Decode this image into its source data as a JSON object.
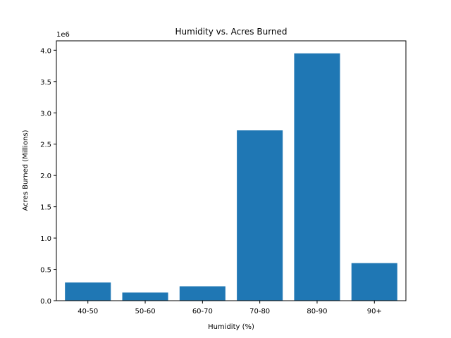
{
  "chart_data": {
    "type": "bar",
    "title": "Humidity vs. Acres Burned",
    "xlabel": "Humidity (%)",
    "ylabel": "Acres Burned (Millions)",
    "y_offset_label": "1e6",
    "categories": [
      "40-50",
      "50-60",
      "60-70",
      "70-80",
      "80-90",
      "90+"
    ],
    "values": [
      290000,
      130000,
      230000,
      2720000,
      3950000,
      600000
    ],
    "ylim": [
      0,
      4150000
    ],
    "yticks": [
      0,
      500000,
      1000000,
      1500000,
      2000000,
      2500000,
      3000000,
      3500000,
      4000000
    ],
    "ytick_labels": [
      "0.0",
      "0.5",
      "1.0",
      "1.5",
      "2.0",
      "2.5",
      "3.0",
      "3.5",
      "4.0"
    ],
    "bar_color": "#1f77b4",
    "grid": false,
    "legend": false
  }
}
